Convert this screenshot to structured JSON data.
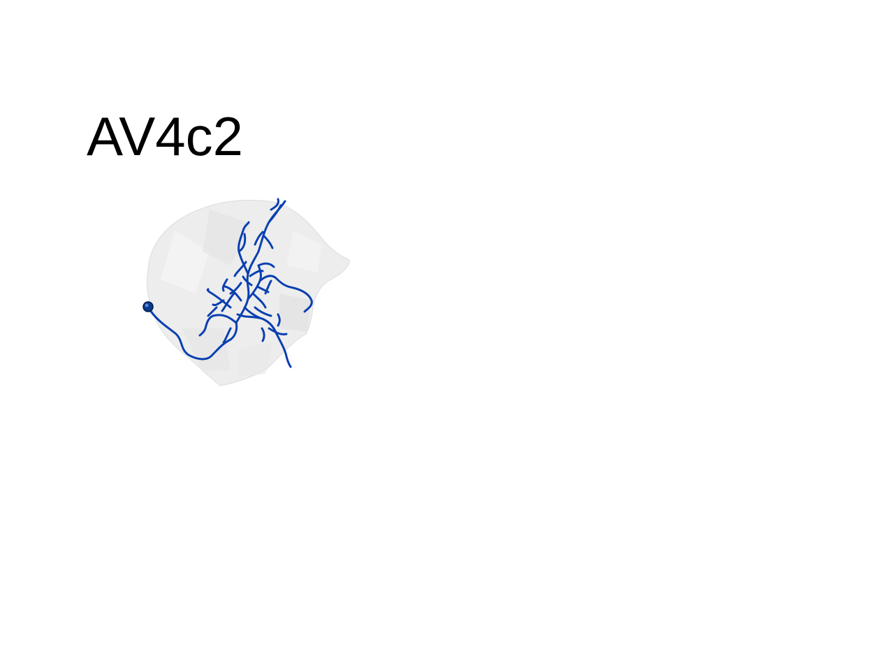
{
  "title": "AV4c2",
  "colors": {
    "neuron": "#0a3fb0",
    "soma": "#0a3a8c",
    "neuropil": "#e6e6e6",
    "background": "#ffffff"
  }
}
